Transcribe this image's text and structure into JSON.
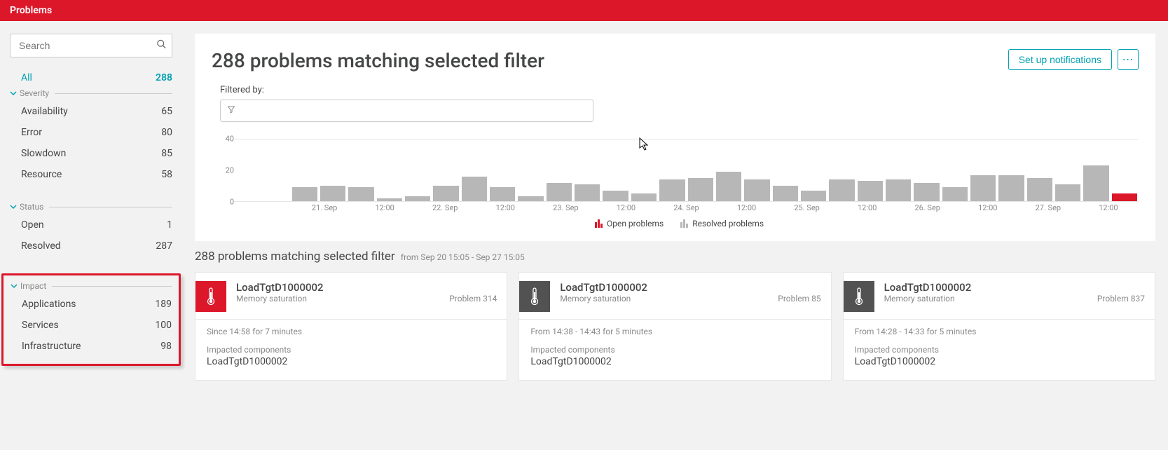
{
  "colors": {
    "brand_red": "#dc172a",
    "teal": "#00a1b2",
    "gray_bar": "#b7b7b7",
    "gray_dark": "#525252",
    "text": "#454646",
    "muted": "#898989",
    "border": "#e6e6e6",
    "bg": "#f2f2f2"
  },
  "topbar": {
    "title": "Problems"
  },
  "sidebar": {
    "search_placeholder": "Search",
    "all": {
      "label": "All",
      "count": "288"
    },
    "groups": [
      {
        "name": "Severity",
        "items": [
          {
            "label": "Availability",
            "count": "65"
          },
          {
            "label": "Error",
            "count": "80"
          },
          {
            "label": "Slowdown",
            "count": "85"
          },
          {
            "label": "Resource",
            "count": "58"
          }
        ]
      },
      {
        "name": "Status",
        "items": [
          {
            "label": "Open",
            "count": "1"
          },
          {
            "label": "Resolved",
            "count": "287"
          }
        ]
      },
      {
        "name": "Impact",
        "highlighted": true,
        "items": [
          {
            "label": "Applications",
            "count": "189"
          },
          {
            "label": "Services",
            "count": "100"
          },
          {
            "label": "Infrastructure",
            "count": "98"
          }
        ]
      }
    ]
  },
  "main": {
    "title": "288 problems matching selected filter",
    "actions": {
      "notifications": "Set up notifications"
    },
    "filtered_by_label": "Filtered by:",
    "chart": {
      "type": "bar",
      "ylim": [
        0,
        40
      ],
      "yticks": [
        0,
        20,
        40
      ],
      "bar_color": "#b7b7b7",
      "bar_color_open": "#dc172a",
      "grid_color": "#e6e6e6",
      "background_color": "#ffffff",
      "axis_fontsize": 11,
      "bars": [
        {
          "v": 0
        },
        {
          "v": 0
        },
        {
          "v": 9
        },
        {
          "v": 10
        },
        {
          "v": 9
        },
        {
          "v": 2
        },
        {
          "v": 3
        },
        {
          "v": 10
        },
        {
          "v": 16
        },
        {
          "v": 9
        },
        {
          "v": 3
        },
        {
          "v": 12
        },
        {
          "v": 11
        },
        {
          "v": 7
        },
        {
          "v": 5
        },
        {
          "v": 14
        },
        {
          "v": 15
        },
        {
          "v": 19
        },
        {
          "v": 14
        },
        {
          "v": 10
        },
        {
          "v": 7
        },
        {
          "v": 14
        },
        {
          "v": 13
        },
        {
          "v": 14
        },
        {
          "v": 12
        },
        {
          "v": 9
        },
        {
          "v": 17
        },
        {
          "v": 17
        },
        {
          "v": 15
        },
        {
          "v": 11
        },
        {
          "v": 23
        },
        {
          "v": 5,
          "open": true
        }
      ],
      "xticks": [
        "",
        "21. Sep",
        "12:00",
        "22. Sep",
        "12:00",
        "23. Sep",
        "12:00",
        "24. Sep",
        "12:00",
        "25. Sep",
        "12:00",
        "26. Sep",
        "12:00",
        "27. Sep",
        "12:00"
      ],
      "legend": {
        "open": "Open problems",
        "resolved": "Resolved problems"
      }
    },
    "subheading": "288 problems matching selected filter",
    "subheading_range": "from Sep 20 15:05 - Sep 27 15:05",
    "cards": [
      {
        "badge_color": "red",
        "title": "LoadTgtD1000002",
        "subtitle": "Memory saturation",
        "problem_id": "Problem 314",
        "duration": "Since 14:58 for 7 minutes",
        "impacted_label": "Impacted components",
        "impacted": "LoadTgtD1000002"
      },
      {
        "badge_color": "gray",
        "title": "LoadTgtD1000002",
        "subtitle": "Memory saturation",
        "problem_id": "Problem 85",
        "duration": "From 14:38 - 14:43 for 5 minutes",
        "impacted_label": "Impacted components",
        "impacted": "LoadTgtD1000002"
      },
      {
        "badge_color": "gray",
        "title": "LoadTgtD1000002",
        "subtitle": "Memory saturation",
        "problem_id": "Problem 837",
        "duration": "From 14:28 - 14:33 for 5 minutes",
        "impacted_label": "Impacted components",
        "impacted": "LoadTgtD1000002"
      }
    ]
  }
}
